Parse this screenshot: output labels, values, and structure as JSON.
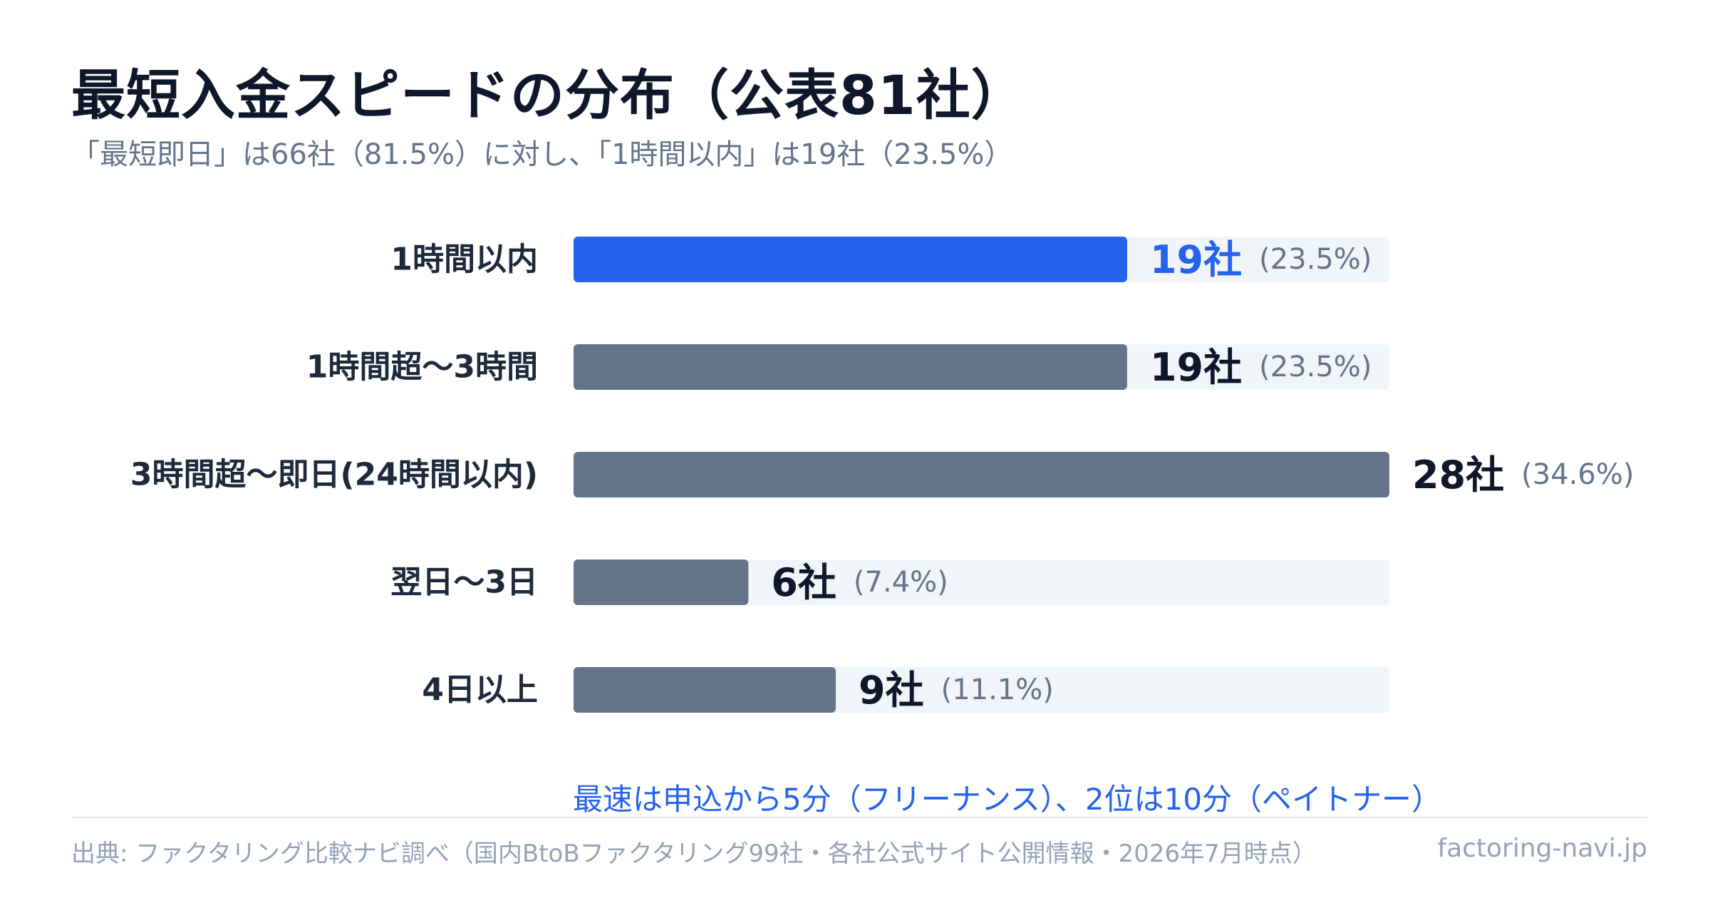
{
  "title": "最短入金スピードの分布（公表81社）",
  "subtitle": "「最短即日」は66社（81.5%）に対し、「1時間以内」は19社（23.5%）",
  "note": "最速は申込から5分（フリーナンス）、2位は10分（ペイトナー）",
  "footer": {
    "source": "出典: ファクタリング比較ナビ調べ（国内BtoBファクタリング99社・各社公式サイト公開情報・2026年7月時点）",
    "site": "factoring-navi.jp"
  },
  "colors": {
    "highlight": "#2563eb",
    "bar": "#64748b",
    "track": "#f1f5f9",
    "count_text": "#0f172a",
    "percent_text": "#64748b"
  },
  "chart_data": {
    "type": "bar",
    "orientation": "horizontal",
    "categories": [
      "1時間以内",
      "1時間超〜3時間",
      "3時間超〜即日(24時間以内)",
      "翌日〜3日",
      "4日以上"
    ],
    "values": [
      19,
      19,
      28,
      6,
      9
    ],
    "value_labels": [
      "19社",
      "19社",
      "28社",
      "6社",
      "9社"
    ],
    "percent_labels": [
      "(23.5%)",
      "(23.5%)",
      "(34.6%)",
      "(7.4%)",
      "(11.1%)"
    ],
    "highlight_index": 0,
    "xlim": [
      0,
      28
    ],
    "grid": false,
    "legend": "none"
  }
}
